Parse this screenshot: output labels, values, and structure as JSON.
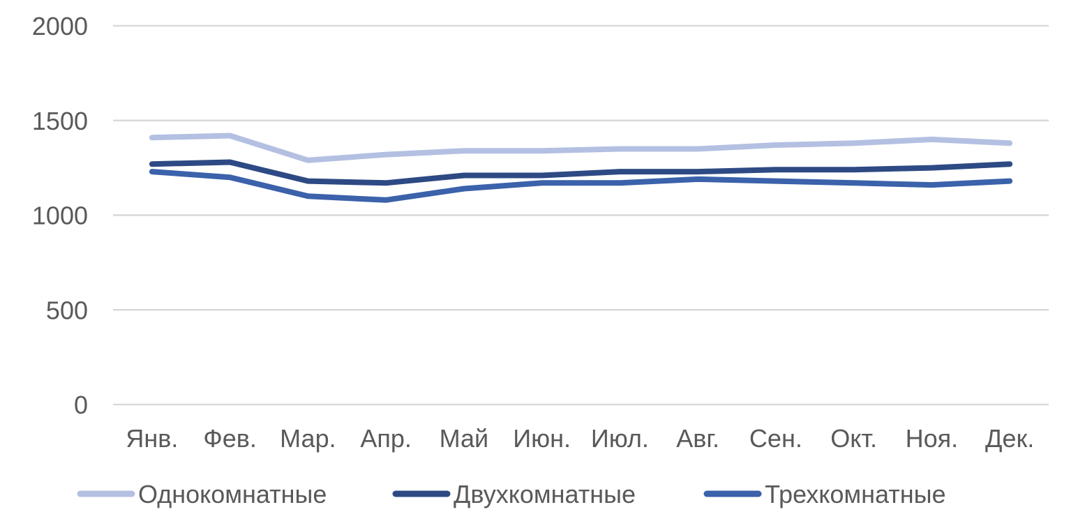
{
  "chart_data": {
    "type": "line",
    "title": "",
    "xlabel": "",
    "ylabel": "",
    "categories": [
      "Янв.",
      "Фев.",
      "Мар.",
      "Апр.",
      "Май",
      "Июн.",
      "Июл.",
      "Авг.",
      "Сен.",
      "Окт.",
      "Ноя.",
      "Дек."
    ],
    "ylim": [
      0,
      2000
    ],
    "yticks": [
      0,
      500,
      1000,
      1500,
      2000
    ],
    "grid": true,
    "legend_position": "bottom",
    "series": [
      {
        "name": "Однокомнатные",
        "color": "#b4c0e2",
        "values": [
          1410,
          1420,
          1290,
          1320,
          1340,
          1340,
          1350,
          1350,
          1370,
          1380,
          1400,
          1380
        ]
      },
      {
        "name": "Двухкомнатные",
        "color": "#2e4a84",
        "values": [
          1270,
          1280,
          1180,
          1170,
          1210,
          1210,
          1230,
          1230,
          1240,
          1240,
          1250,
          1270
        ]
      },
      {
        "name": "Трехкомнатные",
        "color": "#3b62aa",
        "values": [
          1230,
          1200,
          1100,
          1080,
          1140,
          1170,
          1170,
          1190,
          1180,
          1170,
          1160,
          1180
        ]
      }
    ]
  }
}
